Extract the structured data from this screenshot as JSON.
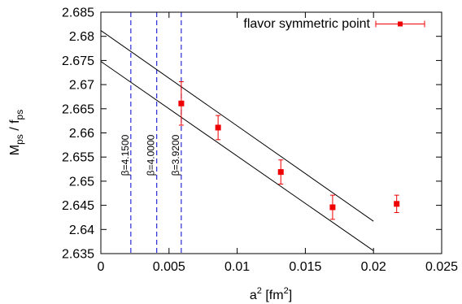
{
  "chart_data": {
    "type": "scatter",
    "xlabel_base": "a",
    "xlabel_sup": "2",
    "xlabel_unit_open": " [fm",
    "xlabel_unit_sup": "2",
    "xlabel_unit_close": "]",
    "ylabel_main": "M",
    "ylabel_sub1": "ps",
    "ylabel_sep": " / f",
    "ylabel_sub2": "ps",
    "xlim": [
      0,
      0.025
    ],
    "ylim": [
      2.635,
      2.685
    ],
    "x_ticks": [
      {
        "value": 0,
        "label": "0"
      },
      {
        "value": 0.005,
        "label": "0.005"
      },
      {
        "value": 0.01,
        "label": "0.01"
      },
      {
        "value": 0.015,
        "label": "0.015"
      },
      {
        "value": 0.02,
        "label": "0.02"
      },
      {
        "value": 0.025,
        "label": "0.025"
      }
    ],
    "y_ticks": [
      {
        "value": 2.635,
        "label": "2.635"
      },
      {
        "value": 2.64,
        "label": "2.64"
      },
      {
        "value": 2.645,
        "label": "2.645"
      },
      {
        "value": 2.65,
        "label": "2.65"
      },
      {
        "value": 2.655,
        "label": "2.655"
      },
      {
        "value": 2.66,
        "label": "2.66"
      },
      {
        "value": 2.665,
        "label": "2.665"
      },
      {
        "value": 2.67,
        "label": "2.67"
      },
      {
        "value": 2.675,
        "label": "2.675"
      },
      {
        "value": 2.68,
        "label": "2.68"
      },
      {
        "value": 2.685,
        "label": "2.685"
      }
    ],
    "legend_position": "top-right",
    "series": [
      {
        "name": "flavor symmetric point",
        "color": "#ee0000",
        "points": [
          {
            "x": 0.0059,
            "y": 2.6661,
            "err": 0.0045
          },
          {
            "x": 0.0086,
            "y": 2.6611,
            "err": 0.0025
          },
          {
            "x": 0.0132,
            "y": 2.6519,
            "err": 0.0025
          },
          {
            "x": 0.017,
            "y": 2.6446,
            "err": 0.0025
          },
          {
            "x": 0.0217,
            "y": 2.6453,
            "err": 0.0018
          }
        ]
      }
    ],
    "fit_lines": [
      {
        "x": [
          0,
          0.02
        ],
        "y": [
          2.6812,
          2.6417
        ]
      },
      {
        "x": [
          0,
          0.02
        ],
        "y": [
          2.6748,
          2.6356
        ]
      }
    ],
    "vertical_lines": [
      {
        "x": 0.0022,
        "label": "β=4.1500"
      },
      {
        "x": 0.0041,
        "label": "β=4.0000"
      },
      {
        "x": 0.0059,
        "label": "β=3.9200"
      }
    ],
    "vline_color": "#0000cc"
  }
}
